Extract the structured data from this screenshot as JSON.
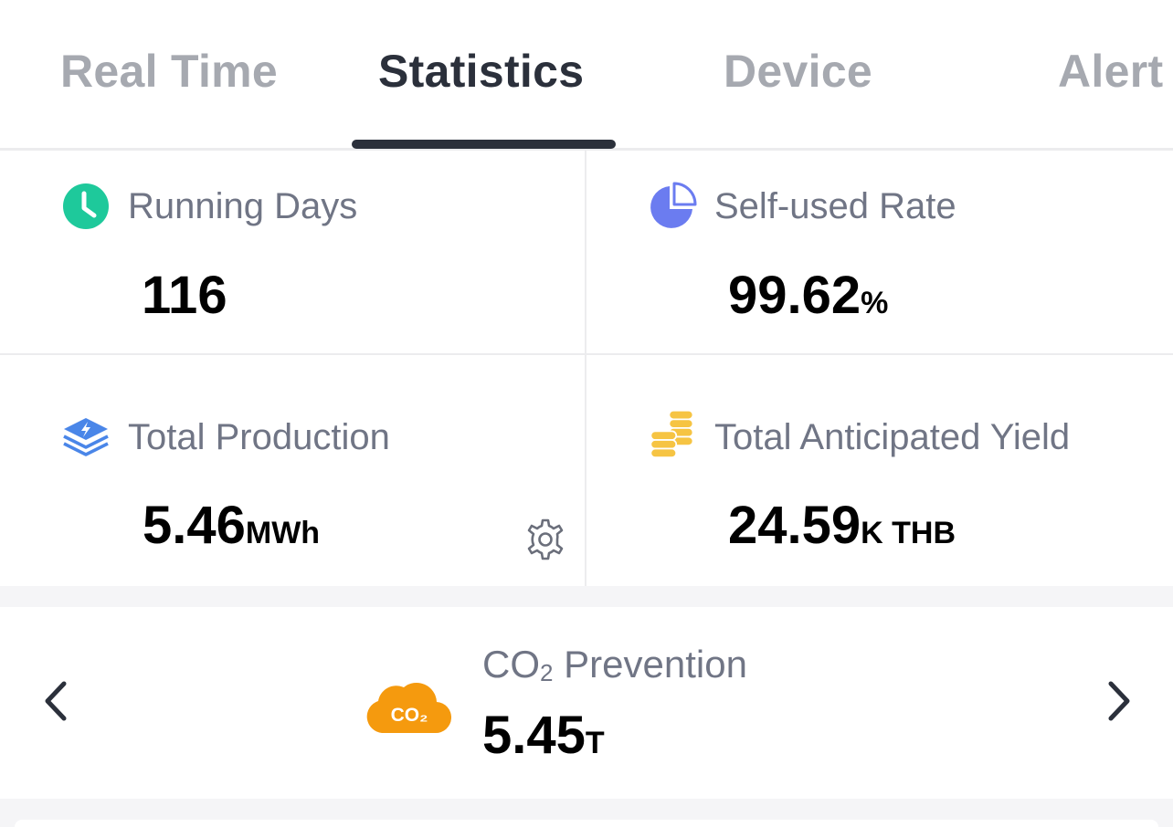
{
  "tabs": [
    {
      "label": "Real Time",
      "active": false
    },
    {
      "label": "Statistics",
      "active": true
    },
    {
      "label": "Device",
      "active": false
    },
    {
      "label": "Alert",
      "active": false
    }
  ],
  "stats": {
    "running_days": {
      "label": "Running Days",
      "value": "116",
      "unit": "",
      "icon": "clock-icon",
      "color": "#1ec99b"
    },
    "self_used_rate": {
      "label": "Self-used Rate",
      "value": "99.62",
      "unit": "%",
      "icon": "pie-chart-icon",
      "color": "#6b7cf0"
    },
    "total_production": {
      "label": "Total Production",
      "value": "5.46",
      "unit": "MWh",
      "icon": "layers-bolt-icon",
      "color": "#4a86e8"
    },
    "total_anticipated_yield": {
      "label": "Total Anticipated Yield",
      "value": "24.59",
      "unit": "K THB",
      "icon": "coins-icon",
      "color": "#f6c443"
    }
  },
  "co2": {
    "label_prefix": "CO",
    "label_sub": "2",
    "label_suffix": " Prevention",
    "value": "5.45",
    "unit": "T",
    "icon_text": "CO₂",
    "icon_color": "#f59a0e"
  }
}
